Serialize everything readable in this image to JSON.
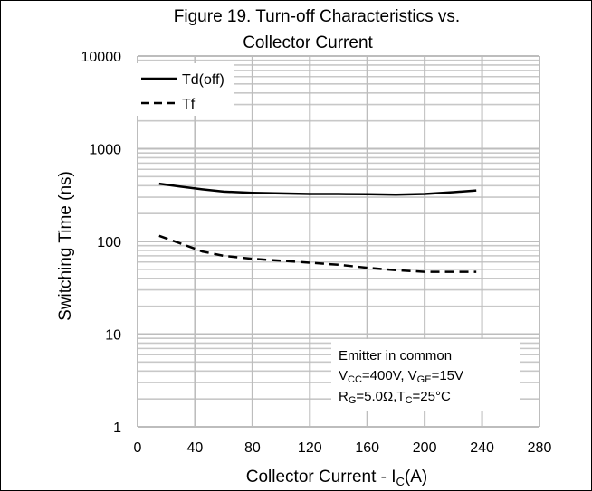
{
  "chart_data": {
    "type": "line",
    "title_line1": "Figure 19. Turn-off Characteristics vs.",
    "title_line2": "Collector Current",
    "xlabel": "Collector Current - I",
    "xlabel_sub": "C",
    "xlabel_suffix": "(A)",
    "ylabel": "Switching Time (ns)",
    "xlim": [
      0,
      280
    ],
    "ylim": [
      1,
      10000
    ],
    "yscale": "log",
    "grid": true,
    "legend_position": "top-left",
    "x_ticks": [
      "0",
      "40",
      "80",
      "120",
      "160",
      "200",
      "240",
      "280"
    ],
    "y_ticks": [
      "1",
      "10",
      "100",
      "1000",
      "10000"
    ],
    "series": [
      {
        "name": "Td(off)",
        "style": "solid",
        "points": [
          [
            15,
            420
          ],
          [
            30,
            390
          ],
          [
            45,
            365
          ],
          [
            60,
            345
          ],
          [
            80,
            335
          ],
          [
            100,
            330
          ],
          [
            120,
            325
          ],
          [
            140,
            325
          ],
          [
            160,
            323
          ],
          [
            180,
            320
          ],
          [
            200,
            325
          ],
          [
            220,
            340
          ],
          [
            236,
            355
          ]
        ]
      },
      {
        "name": "Tf",
        "style": "dashed",
        "points": [
          [
            15,
            115
          ],
          [
            30,
            95
          ],
          [
            45,
            78
          ],
          [
            60,
            70
          ],
          [
            80,
            65
          ],
          [
            100,
            62
          ],
          [
            120,
            59
          ],
          [
            140,
            56
          ],
          [
            160,
            52
          ],
          [
            180,
            49
          ],
          [
            200,
            47
          ],
          [
            220,
            47
          ],
          [
            236,
            47
          ]
        ]
      }
    ],
    "annotation": {
      "line1": "Emitter in common",
      "line2": {
        "v1": "V",
        "v1_sub": "CC",
        "v1_val": "=400V, V",
        "v2_sub": "GE",
        "v2_val": "=15V"
      },
      "line3": {
        "r": "R",
        "r_sub": "G",
        "r_val": "=5.0Ω,T",
        "t_sub": "C",
        "t_val": "=25°C"
      }
    }
  }
}
